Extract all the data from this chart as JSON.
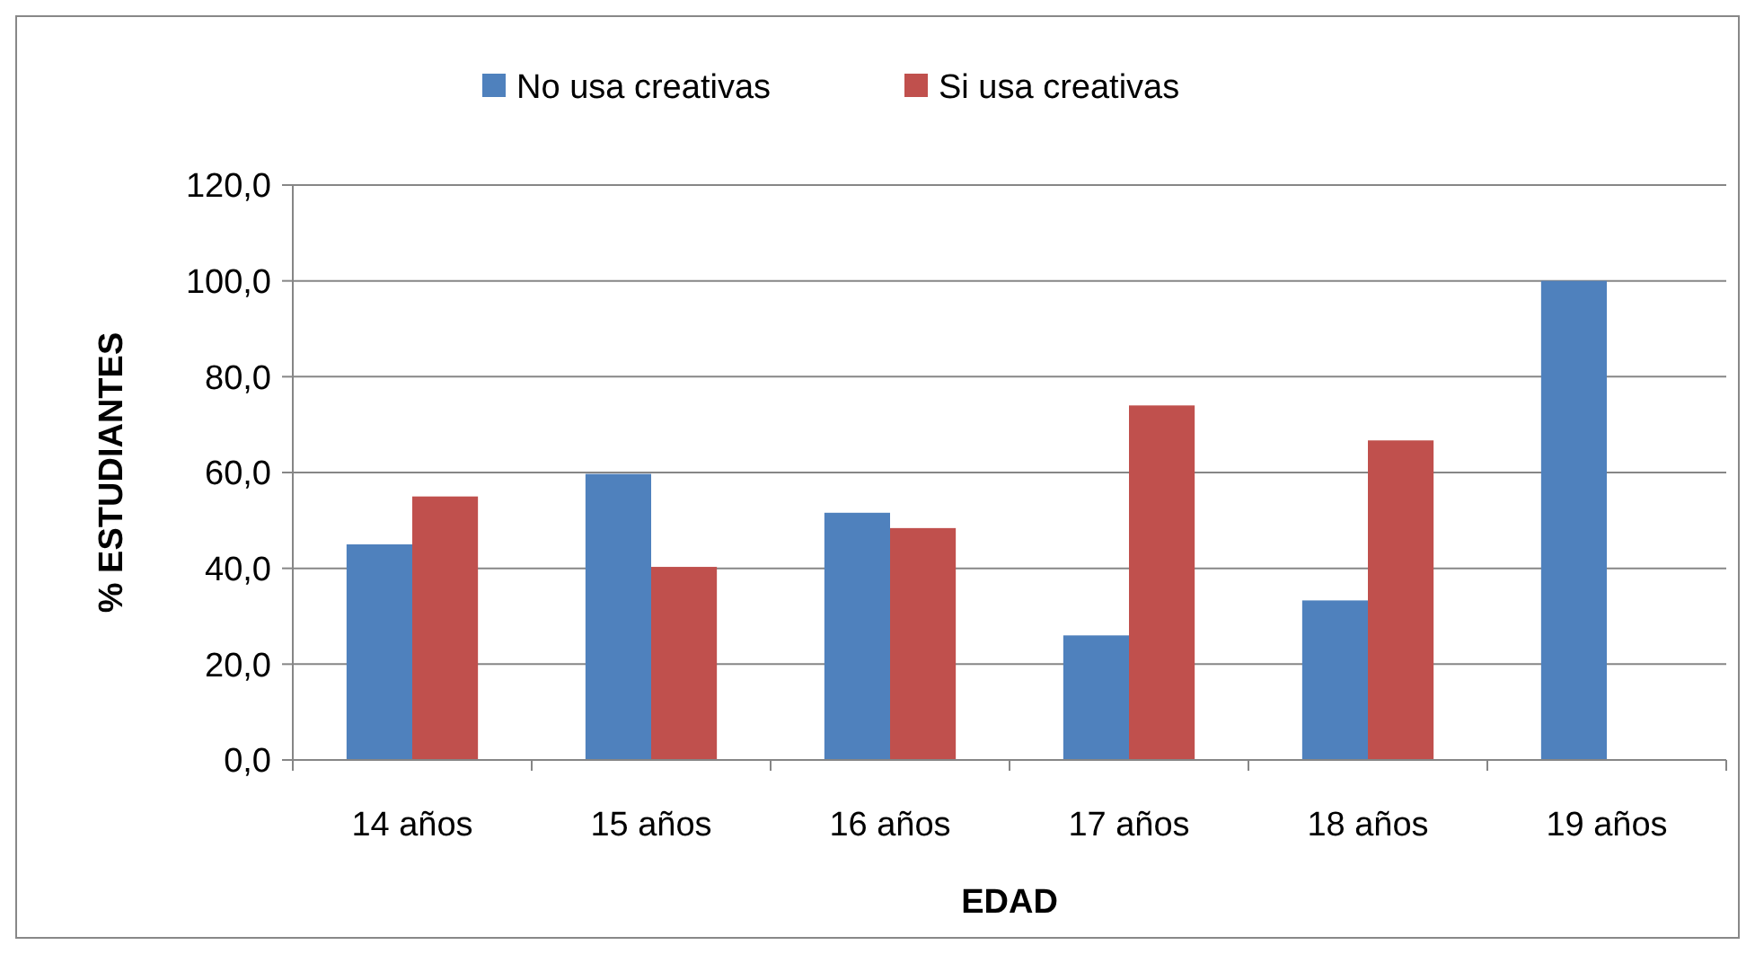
{
  "chart_data": {
    "type": "bar",
    "xlabel": "EDAD",
    "ylabel": "% ESTUDIANTES",
    "categories": [
      "14 años",
      "15 años",
      "16 años",
      "17 años",
      "18 años",
      "19 años"
    ],
    "series": [
      {
        "name": "No usa creativas",
        "color": "#4f81bd",
        "values": [
          45.0,
          59.7,
          51.6,
          26.0,
          33.3,
          100.0
        ]
      },
      {
        "name": "Si usa creativas",
        "color": "#c0504d",
        "values": [
          55.0,
          40.3,
          48.4,
          74.0,
          66.7,
          0.0
        ]
      }
    ],
    "ylim": [
      0,
      120
    ],
    "yticks": [
      {
        "value": 0,
        "label": "0,0"
      },
      {
        "value": 20,
        "label": "20,0"
      },
      {
        "value": 40,
        "label": "40,0"
      },
      {
        "value": 60,
        "label": "60,0"
      },
      {
        "value": 80,
        "label": "80,0"
      },
      {
        "value": 100,
        "label": "100,0"
      },
      {
        "value": 120,
        "label": "120,0"
      }
    ],
    "grid": "y",
    "legend": "top"
  }
}
